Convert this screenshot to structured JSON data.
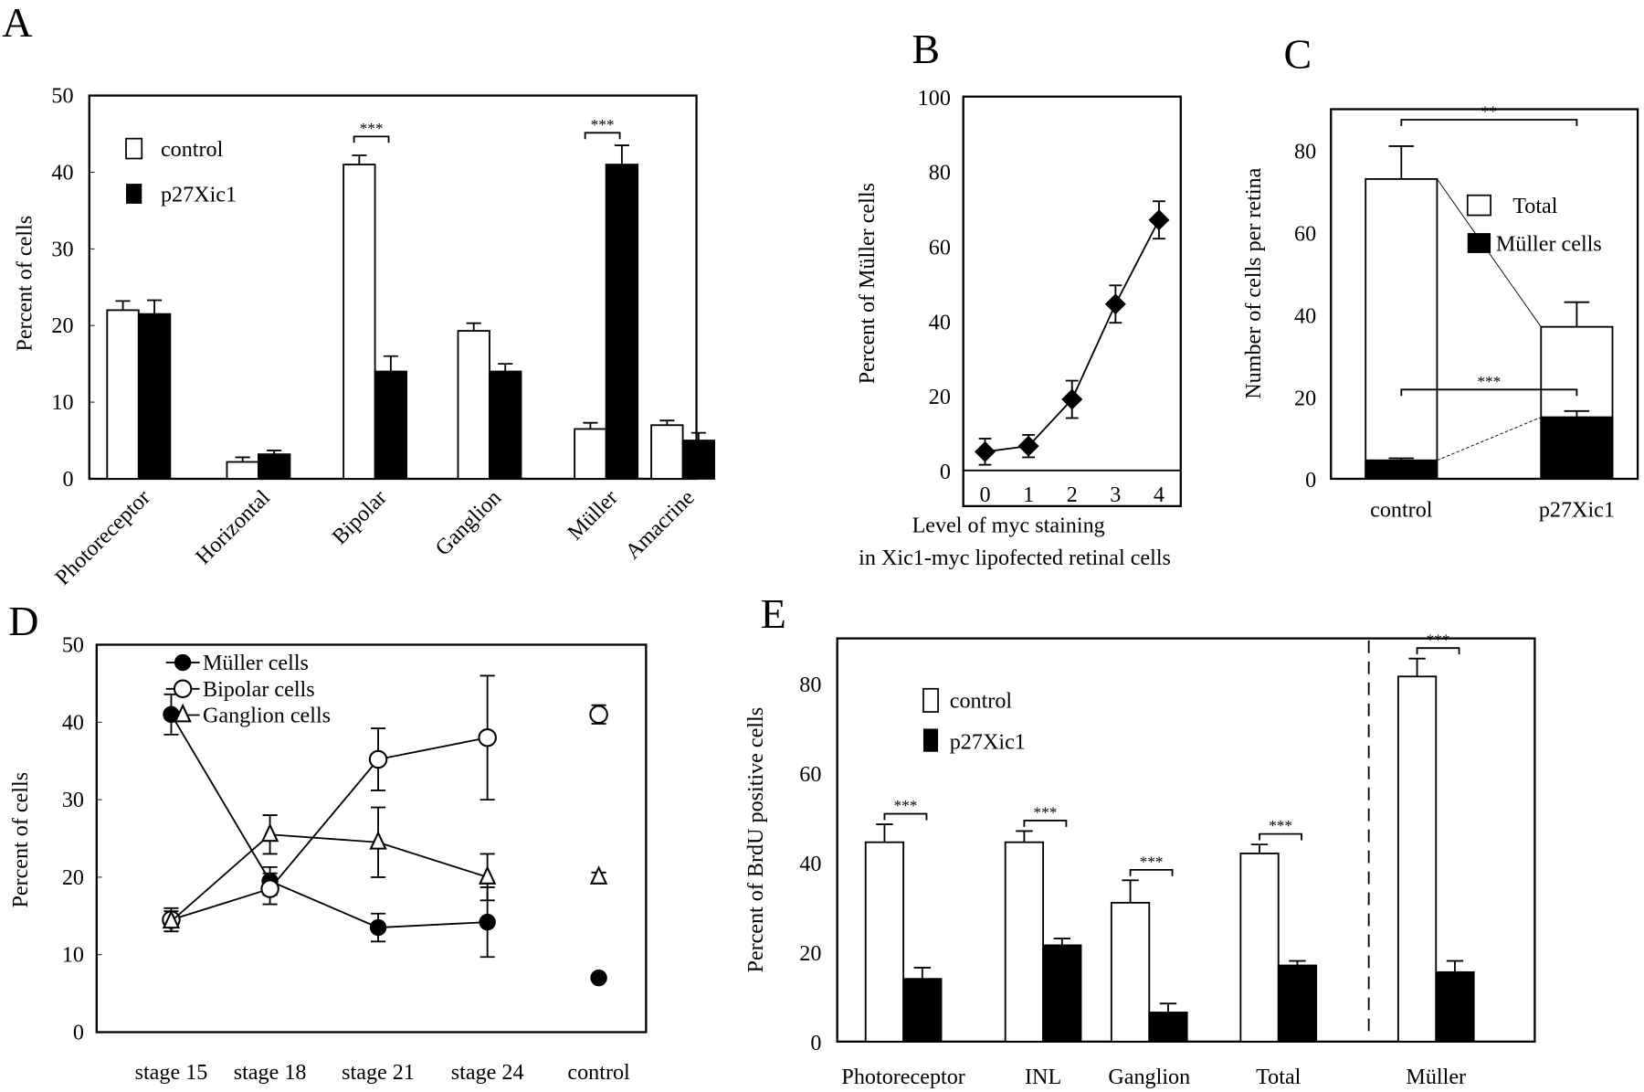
{
  "figure": {
    "panels": [
      "A",
      "B",
      "C",
      "D",
      "E"
    ]
  },
  "chart_data": [
    {
      "id": "A",
      "type": "bar",
      "title": "",
      "panel_label": "A",
      "xlabel": "",
      "ylabel": "Percent of cells",
      "ylim": [
        0,
        50
      ],
      "yticks": [
        0,
        10,
        20,
        30,
        40,
        50
      ],
      "categories": [
        "Photoreceptor",
        "Horizontal",
        "Bipolar",
        "Ganglion",
        "Müller",
        "Amacrine"
      ],
      "legend": {
        "position": "top-left",
        "entries": [
          "control",
          "p27Xic1"
        ]
      },
      "series": [
        {
          "name": "control",
          "fill": "white",
          "values": [
            22,
            2.2,
            41,
            19.3,
            6.5,
            7
          ],
          "errors": [
            1.2,
            0.6,
            1.2,
            1.0,
            0.8,
            0.6
          ]
        },
        {
          "name": "p27Xic1",
          "fill": "black",
          "values": [
            21.5,
            3.2,
            14,
            14,
            41,
            5
          ],
          "errors": [
            1.8,
            0.5,
            2.0,
            1.0,
            2.5,
            1.0
          ]
        }
      ],
      "annotations": [
        {
          "category": "Bipolar",
          "text": "***"
        },
        {
          "category": "Müller",
          "text": "***"
        }
      ]
    },
    {
      "id": "B",
      "type": "line",
      "panel_label": "B",
      "xlabel": "Level of myc staining",
      "xlabel2": "in Xic1-myc lipofected retinal cells",
      "ylabel": "Percent of Müller cells",
      "ylim": [
        0,
        100
      ],
      "yticks": [
        0,
        20,
        40,
        60,
        80,
        100
      ],
      "xlim": [
        -0.5,
        4.5
      ],
      "xticks": [
        0,
        1,
        2,
        3,
        4
      ],
      "series": [
        {
          "name": "Müller cells",
          "marker": "diamond",
          "x": [
            0,
            1,
            2,
            3,
            4
          ],
          "y": [
            5,
            6.5,
            19,
            44.5,
            67
          ],
          "errors": [
            3.5,
            3,
            5,
            5,
            5
          ]
        }
      ]
    },
    {
      "id": "C",
      "type": "bar",
      "panel_label": "C",
      "ylabel": "Number of cells per retina",
      "ylim": [
        0,
        90
      ],
      "yticks": [
        0,
        20,
        40,
        60,
        80
      ],
      "categories": [
        "control",
        "p27Xic1"
      ],
      "legend": {
        "position": "top-right",
        "entries": [
          "Total",
          "Müller cells"
        ]
      },
      "series": [
        {
          "name": "Total",
          "fill": "white",
          "values": [
            73,
            37
          ],
          "errors": [
            8,
            6
          ]
        },
        {
          "name": "Müller cells",
          "fill": "black",
          "values": [
            4.5,
            15
          ],
          "errors": [
            0.5,
            1.5
          ]
        }
      ],
      "annotations": [
        {
          "between": [
            "control",
            "p27Xic1"
          ],
          "series": "Total",
          "text": "**"
        },
        {
          "between": [
            "control",
            "p27Xic1"
          ],
          "series": "Müller cells",
          "text": "***"
        }
      ]
    },
    {
      "id": "D",
      "type": "line",
      "panel_label": "D",
      "ylabel": "Percent of cells",
      "ylim": [
        0,
        50
      ],
      "yticks": [
        0,
        10,
        20,
        30,
        40,
        50
      ],
      "categories": [
        "stage 15",
        "stage 18",
        "stage 21",
        "stage 24",
        "control"
      ],
      "legend": {
        "position": "top-left",
        "entries": [
          "Müller cells",
          "Bipolar cells",
          "Ganglion cells"
        ]
      },
      "series": [
        {
          "name": "Müller cells",
          "marker": "filled-circle",
          "values": [
            41,
            19.5,
            13.5,
            14.2
          ],
          "errors": [
            2.6,
            1.8,
            1.8,
            4.5
          ],
          "control": 7,
          "control_error": 0
        },
        {
          "name": "Bipolar cells",
          "marker": "open-circle",
          "values": [
            14.5,
            18.5,
            35.2,
            38
          ],
          "errors": [
            1.5,
            2.0,
            4.0,
            8.0
          ],
          "control": 41,
          "control_error": 1.2
        },
        {
          "name": "Ganglion cells",
          "marker": "open-triangle",
          "values": [
            14.3,
            25.5,
            24.5,
            20
          ],
          "errors": [
            1.3,
            2.5,
            4.5,
            3.0
          ],
          "control": 20,
          "control_error": 0.6
        }
      ]
    },
    {
      "id": "E",
      "type": "bar",
      "panel_label": "E",
      "ylabel": "Percent of BrdU positive cells",
      "ylim": [
        0,
        90
      ],
      "yticks": [
        0,
        20,
        40,
        60,
        80
      ],
      "categories": [
        "Photoreceptor",
        "INL",
        "Ganglion",
        "Total",
        "Müller"
      ],
      "legend": {
        "position": "top-left",
        "entries": [
          "control",
          "p27Xic1"
        ]
      },
      "separator_before": "Müller",
      "series": [
        {
          "name": "control",
          "fill": "white",
          "values": [
            44.5,
            44.5,
            31,
            42,
            81.5
          ],
          "errors": [
            4,
            2.5,
            5,
            2,
            4
          ]
        },
        {
          "name": "p27Xic1",
          "fill": "black",
          "values": [
            14,
            21.5,
            6.5,
            17,
            15.5
          ],
          "errors": [
            2.5,
            1.5,
            2,
            1,
            2.5
          ]
        }
      ],
      "annotations": [
        {
          "category": "Photoreceptor",
          "text": "***"
        },
        {
          "category": "INL",
          "text": "***"
        },
        {
          "category": "Ganglion",
          "text": "***"
        },
        {
          "category": "Total",
          "text": "***"
        },
        {
          "category": "Müller",
          "text": "***"
        }
      ]
    }
  ]
}
